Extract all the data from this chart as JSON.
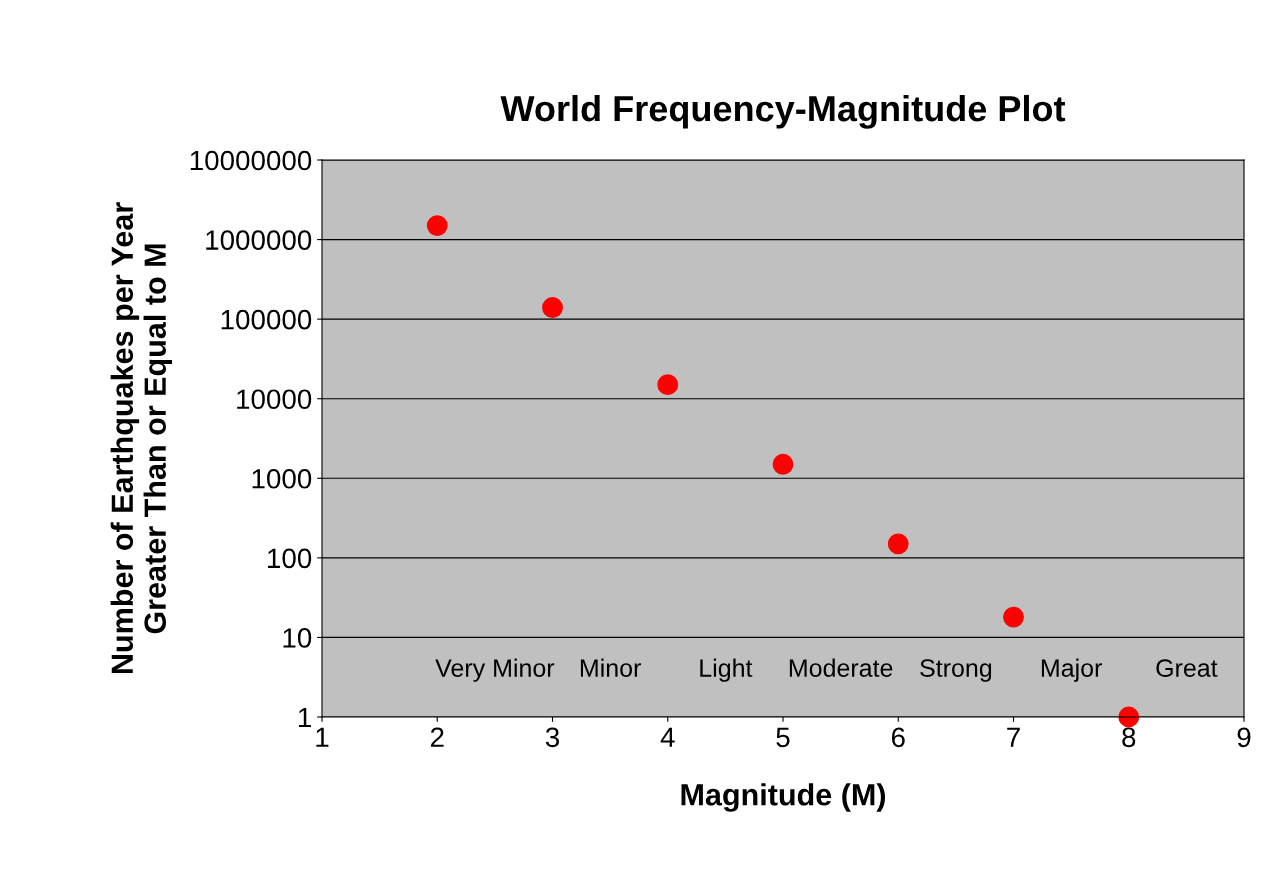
{
  "chart_data": {
    "type": "scatter",
    "title": "World Frequency-Magnitude Plot",
    "xlabel": "Magnitude (M)",
    "ylabel": "Number of Earthquakes per Year\nGreater Than or Equal to M",
    "x": [
      2,
      3,
      4,
      5,
      6,
      7,
      8
    ],
    "series": [
      {
        "color": "#ff0000",
        "values": [
          1500000,
          140000,
          15000,
          1500,
          150,
          18,
          1
        ]
      }
    ],
    "log": "y",
    "marker": "circle",
    "grid": "y",
    "xlim": [
      1,
      9
    ],
    "xticks": [
      1,
      2,
      3,
      4,
      5,
      6,
      7,
      8,
      9
    ],
    "ylim": [
      1,
      10000000
    ],
    "yticks": [
      1,
      10,
      100,
      1000,
      10000,
      100000,
      1000000,
      10000000
    ],
    "annotations": [
      "Very Minor",
      "Minor",
      "Light",
      "Moderate",
      "Strong",
      "Major",
      "Great"
    ]
  }
}
